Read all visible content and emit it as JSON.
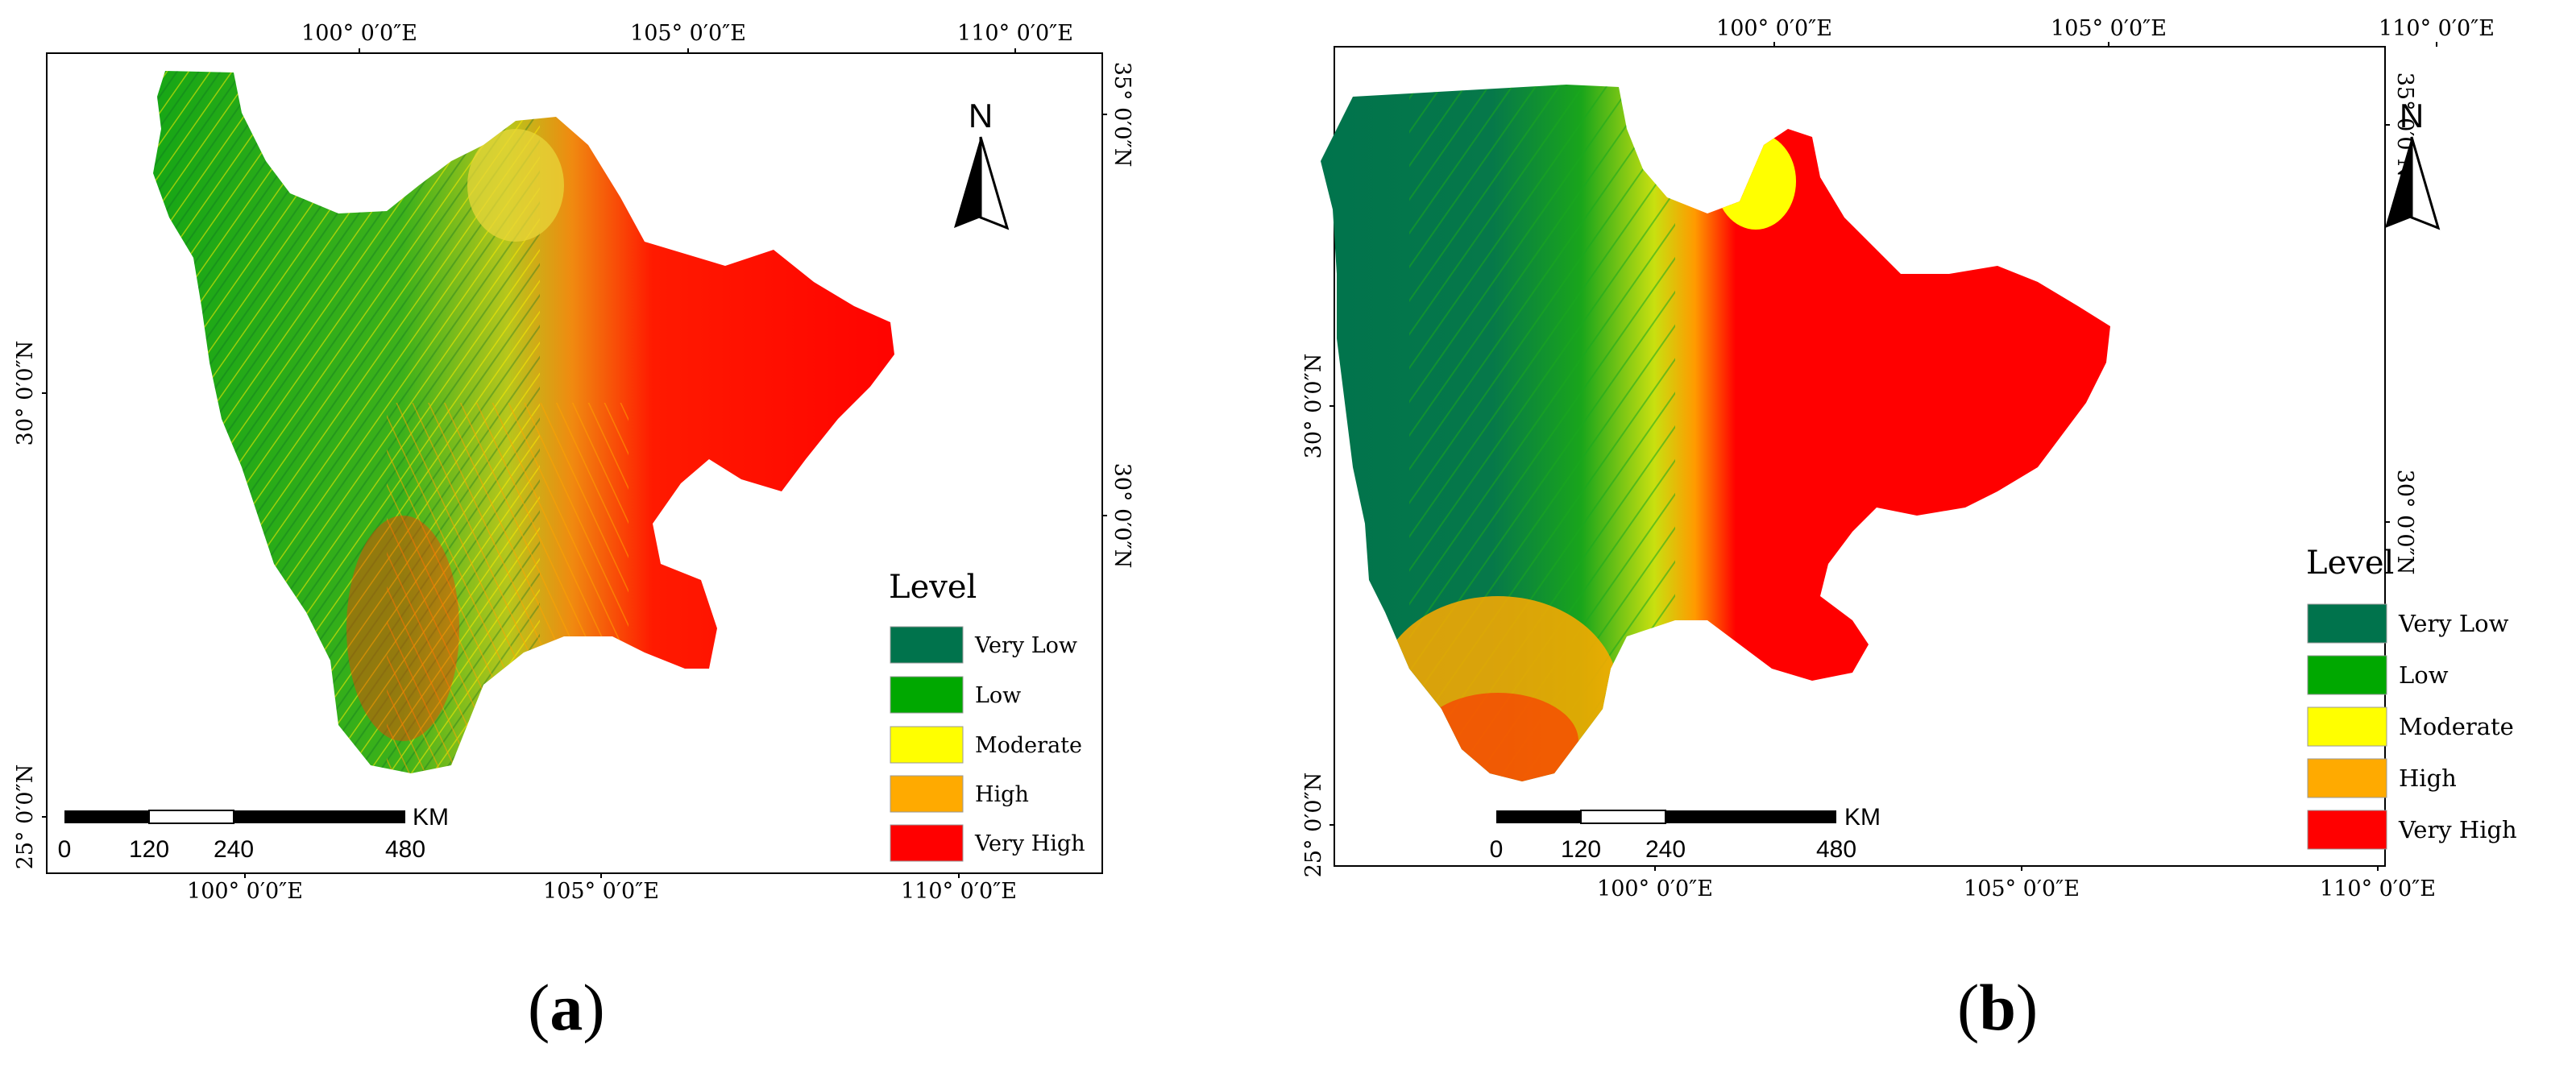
{
  "panels": [
    {
      "id": "a",
      "label": "a",
      "lon_ticks": [
        "100° 0′0″E",
        "105° 0′0″E",
        "110° 0′0″E"
      ],
      "lat_ticks_left": [
        "30° 0′0″N",
        "25° 0′0″N"
      ],
      "lat_ticks_right": [
        "35° 0′0″N",
        "30° 0′0″N"
      ],
      "north_arrow_label": "N",
      "scale_bar": {
        "ticks": [
          "0",
          "120",
          "240",
          "480"
        ],
        "unit": "KM"
      },
      "legend": {
        "title": "Level",
        "items": [
          {
            "label": "Very Low",
            "color": "#00734c"
          },
          {
            "label": "Low",
            "color": "#00a800"
          },
          {
            "label": "Moderate",
            "color": "#ffff00"
          },
          {
            "label": "High",
            "color": "#ffaa00"
          },
          {
            "label": "Very High",
            "color": "#ff0000"
          }
        ]
      }
    },
    {
      "id": "b",
      "label": "b",
      "lon_ticks": [
        "100° 0′0″E",
        "105° 0′0″E",
        "110° 0′0″E"
      ],
      "lat_ticks_left": [
        "30° 0′0″N",
        "25° 0′0″N"
      ],
      "lat_ticks_right": [
        "35° 0′0″N",
        "30° 0′0″N"
      ],
      "north_arrow_label": "N",
      "scale_bar": {
        "ticks": [
          "0",
          "120",
          "240",
          "480"
        ],
        "unit": "KM"
      },
      "legend": {
        "title": "Level",
        "items": [
          {
            "label": "Very Low",
            "color": "#00734c"
          },
          {
            "label": "Low",
            "color": "#00a800"
          },
          {
            "label": "Moderate",
            "color": "#ffff00"
          },
          {
            "label": "High",
            "color": "#ffaa00"
          },
          {
            "label": "Very High",
            "color": "#ff0000"
          }
        ]
      }
    }
  ]
}
